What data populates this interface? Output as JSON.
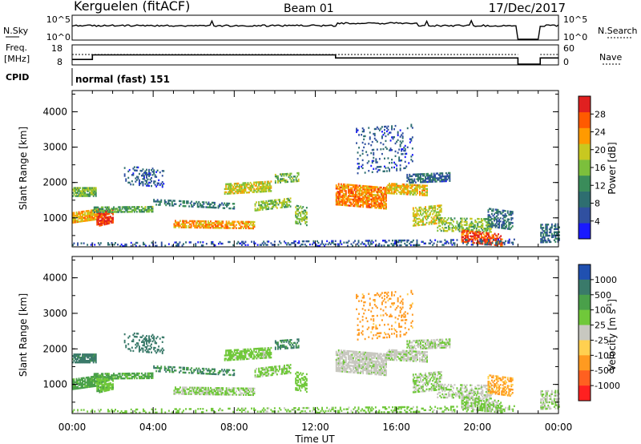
{
  "chart_data": {
    "type": "heatmap",
    "header": {
      "station": "Kerguelen (fitACF)",
      "beam": "Beam 01",
      "date": "17/Dec/2017"
    },
    "top_panels": {
      "nsky_label": "N.Sky",
      "nsky_ticks": [
        "10^5",
        "10^0"
      ],
      "nsearch_label": "N.Search",
      "nsearch_ticks": [
        "10^5",
        "10^0"
      ],
      "freq_label_1": "Freq.",
      "freq_label_2": "[MHz]",
      "freq_ticks": [
        "18",
        "8"
      ],
      "nave_label": "Nave",
      "nave_ticks": [
        "60",
        "0"
      ],
      "cpid_label": "CPID",
      "cpid_value": "normal (fast) 151",
      "gap_start_hour": 22.0,
      "gap_end_hour": 23.1,
      "freq_steps": [
        {
          "start": 0.0,
          "end": 1.0,
          "mhz": 10
        },
        {
          "start": 1.0,
          "end": 13.0,
          "mhz": 13
        },
        {
          "start": 13.0,
          "end": 22.0,
          "mhz": 11
        },
        {
          "start": 23.1,
          "end": 24.0,
          "mhz": 11
        }
      ]
    },
    "x": {
      "label": "Time UT",
      "range_hours": [
        0,
        24
      ],
      "ticks": [
        "00:00",
        "04:00",
        "08:00",
        "12:00",
        "16:00",
        "20:00",
        "00:00"
      ]
    },
    "y": {
      "label": "Slant Range [km]",
      "range_km": [
        180,
        4600
      ],
      "ticks": [
        "1000",
        "2000",
        "3000",
        "4000"
      ]
    },
    "power_panel": {
      "colorbar_label": "Power [dB]",
      "colorbar_ticks": [
        "4",
        "8",
        "12",
        "16",
        "20",
        "24",
        "28"
      ],
      "scale_range_db": [
        0,
        30
      ],
      "palette": [
        "#1a1aff",
        "#3050a0",
        "#2e6e70",
        "#3a8c5a",
        "#7cbf3c",
        "#c8c820",
        "#ff9a00",
        "#ff5a00",
        "#e02020"
      ]
    },
    "velocity_panel": {
      "colorbar_label": "Velocity [m s^-1]",
      "colorbar_ticks": [
        "1000",
        "500",
        "100",
        "25",
        "-25",
        "-100",
        "-500",
        "-1000"
      ],
      "scale_range_ms": [
        -1200,
        1200
      ],
      "ground_scatter_color": "#c8c8c0",
      "palette": [
        "#2050b0",
        "#3a7a6a",
        "#4aa04a",
        "#70c83a",
        "#c8c8c0",
        "#ffd050",
        "#ff9a20",
        "#ff6020",
        "#ff2020"
      ]
    },
    "echo_bands": [
      {
        "t0": 0.0,
        "t1": 1.2,
        "r0": 1600,
        "r1": 1850,
        "power": 14,
        "vel": 450,
        "density": 0.85
      },
      {
        "t0": 0.0,
        "t1": 1.3,
        "r0": 900,
        "r1": 1200,
        "power": 21,
        "vel": 150,
        "density": 0.8
      },
      {
        "t0": 1.2,
        "t1": 2.0,
        "r0": 800,
        "r1": 1200,
        "power": 27,
        "vel": 80,
        "density": 0.8
      },
      {
        "t0": 1.0,
        "t1": 4.0,
        "r0": 1150,
        "r1": 1300,
        "power": 13,
        "vel": 120,
        "density": 0.65
      },
      {
        "t0": 2.5,
        "t1": 4.5,
        "r0": 1900,
        "r1": 2400,
        "power": 6,
        "vel": 500,
        "density": 0.3
      },
      {
        "t0": 4.0,
        "t1": 8.0,
        "r0": 1300,
        "r1": 1450,
        "power": 9,
        "vel": 300,
        "density": 0.45
      },
      {
        "t0": 5.0,
        "t1": 9.0,
        "r0": 700,
        "r1": 900,
        "power": 22,
        "vel": 30,
        "density": 0.7
      },
      {
        "t0": 7.5,
        "t1": 9.8,
        "r0": 1700,
        "r1": 2000,
        "power": 18,
        "vel": 40,
        "density": 0.7
      },
      {
        "t0": 9.0,
        "t1": 10.8,
        "r0": 1250,
        "r1": 1500,
        "power": 16,
        "vel": 35,
        "density": 0.6
      },
      {
        "t0": 10.0,
        "t1": 11.2,
        "r0": 2000,
        "r1": 2250,
        "power": 14,
        "vel": 350,
        "density": 0.5
      },
      {
        "t0": 11.0,
        "t1": 11.6,
        "r0": 800,
        "r1": 1300,
        "power": 15,
        "vel": 60,
        "density": 0.6
      },
      {
        "t0": 13.0,
        "t1": 15.5,
        "r0": 1300,
        "r1": 1900,
        "power": 23,
        "vel": 10,
        "density": 0.8
      },
      {
        "t0": 15.5,
        "t1": 17.5,
        "r0": 1650,
        "r1": 1950,
        "power": 20,
        "vel": 15,
        "density": 0.75
      },
      {
        "t0": 16.5,
        "t1": 18.6,
        "r0": 2000,
        "r1": 2250,
        "power": 7,
        "vel": 20,
        "density": 0.65
      },
      {
        "t0": 14.0,
        "t1": 16.8,
        "r0": 2300,
        "r1": 3600,
        "power": 6,
        "vel": -150,
        "density": 0.15
      },
      {
        "t0": 16.8,
        "t1": 18.2,
        "r0": 800,
        "r1": 1300,
        "power": 18,
        "vel": 30,
        "density": 0.55
      },
      {
        "t0": 18.0,
        "t1": 20.8,
        "r0": 600,
        "r1": 1000,
        "power": 15,
        "vel": 20,
        "density": 0.5
      },
      {
        "t0": 19.2,
        "t1": 21.2,
        "r0": 250,
        "r1": 600,
        "power": 26,
        "vel": 30,
        "density": 0.7
      },
      {
        "t0": 20.5,
        "t1": 21.7,
        "r0": 700,
        "r1": 1200,
        "power": 8,
        "vel": -120,
        "density": 0.5
      },
      {
        "t0": 23.1,
        "t1": 24.0,
        "r0": 300,
        "r1": 800,
        "power": 8,
        "vel": 20,
        "density": 0.5
      },
      {
        "t0": 0.0,
        "t1": 21.8,
        "r0": 180,
        "r1": 350,
        "power": 6,
        "vel": 40,
        "density": 0.25
      }
    ]
  }
}
